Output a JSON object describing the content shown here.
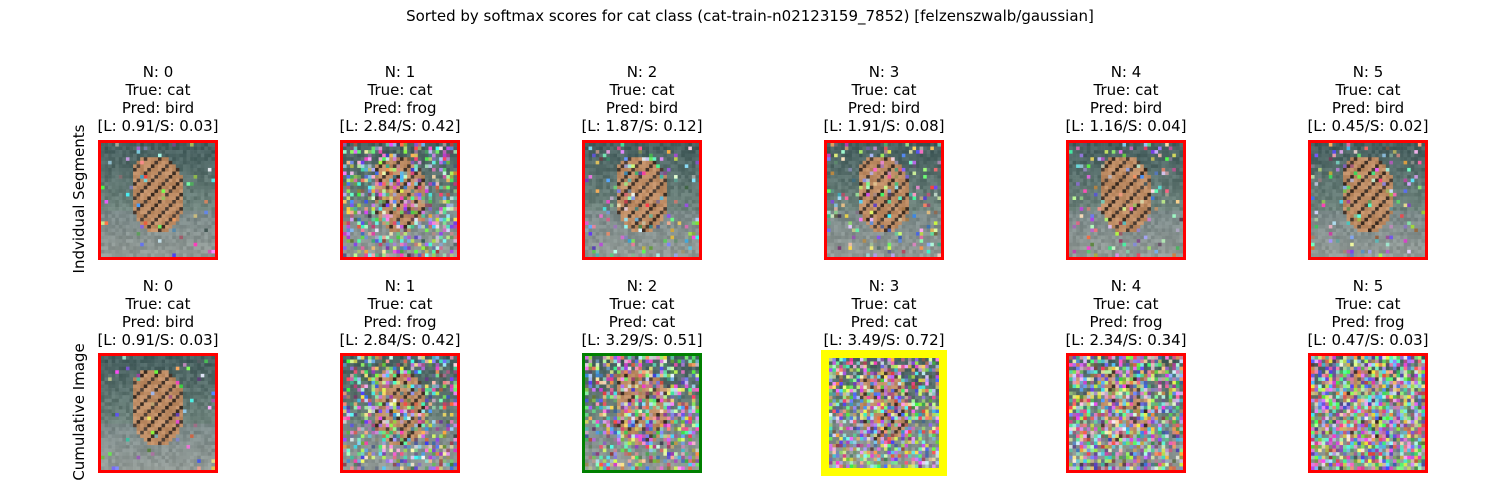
{
  "figure": {
    "title": "Sorted by softmax scores for cat class (cat-train-n02123159_7852) [felzenszwalb/gaussian]",
    "colors": {
      "incorrect": "#ff0000",
      "correct": "#008000",
      "best": "#ffff00"
    }
  },
  "rows": [
    {
      "label": "Indvidual Segments",
      "panels": [
        {
          "n": "N: 0",
          "true": "True: cat",
          "pred": "Pred: bird",
          "scores": "[L: 0.91/S: 0.03]",
          "status": "incorrect",
          "noise": 0.05
        },
        {
          "n": "N: 1",
          "true": "True: cat",
          "pred": "Pred: frog",
          "scores": "[L: 2.84/S: 0.42]",
          "status": "incorrect",
          "noise": 0.45
        },
        {
          "n": "N: 2",
          "true": "True: cat",
          "pred": "Pred: bird",
          "scores": "[L: 1.87/S: 0.12]",
          "status": "incorrect",
          "noise": 0.12
        },
        {
          "n": "N: 3",
          "true": "True: cat",
          "pred": "Pred: bird",
          "scores": "[L: 1.91/S: 0.08]",
          "status": "incorrect",
          "noise": 0.15
        },
        {
          "n": "N: 4",
          "true": "True: cat",
          "pred": "Pred: bird",
          "scores": "[L: 1.16/S: 0.04]",
          "status": "incorrect",
          "noise": 0.1
        },
        {
          "n": "N: 5",
          "true": "True: cat",
          "pred": "Pred: bird",
          "scores": "[L: 0.45/S: 0.02]",
          "status": "incorrect",
          "noise": 0.08
        }
      ]
    },
    {
      "label": "Cumulative Image",
      "panels": [
        {
          "n": "N: 0",
          "true": "True: cat",
          "pred": "Pred: bird",
          "scores": "[L: 0.91/S: 0.03]",
          "status": "incorrect",
          "noise": 0.05
        },
        {
          "n": "N: 1",
          "true": "True: cat",
          "pred": "Pred: frog",
          "scores": "[L: 2.84/S: 0.42]",
          "status": "incorrect",
          "noise": 0.45
        },
        {
          "n": "N: 2",
          "true": "True: cat",
          "pred": "Pred: cat",
          "scores": "[L: 3.29/S: 0.51]",
          "status": "correct",
          "noise": 0.55
        },
        {
          "n": "N: 3",
          "true": "True: cat",
          "pred": "Pred: cat",
          "scores": "[L: 3.49/S: 0.72]",
          "status": "best",
          "noise": 0.65
        },
        {
          "n": "N: 4",
          "true": "True: cat",
          "pred": "Pred: frog",
          "scores": "[L: 2.34/S: 0.34]",
          "status": "incorrect",
          "noise": 0.75
        },
        {
          "n": "N: 5",
          "true": "True: cat",
          "pred": "Pred: frog",
          "scores": "[L: 0.47/S: 0.03]",
          "status": "incorrect",
          "noise": 0.85
        }
      ]
    }
  ]
}
